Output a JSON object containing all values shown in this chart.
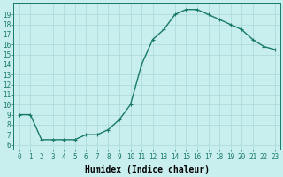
{
  "x": [
    0,
    1,
    2,
    3,
    4,
    5,
    6,
    7,
    8,
    9,
    10,
    11,
    12,
    13,
    14,
    15,
    16,
    17,
    18,
    19,
    20,
    21,
    22,
    23
  ],
  "y": [
    9,
    9,
    6.5,
    6.5,
    6.5,
    6.5,
    7,
    7,
    7.5,
    8.5,
    10,
    14,
    16.5,
    17.5,
    19,
    19.5,
    19.5,
    19,
    18.5,
    18,
    17.5,
    16.5,
    15.8,
    15.5
  ],
  "line_color": "#1a7a6a",
  "marker": "+",
  "marker_size": 3,
  "line_width": 1.0,
  "bg_color": "#c8eeee",
  "grid_color": "#aad8d8",
  "xlabel": "Humidex (Indice chaleur)",
  "xlabel_fontsize": 7,
  "ylabel_ticks": [
    6,
    7,
    8,
    9,
    10,
    11,
    12,
    13,
    14,
    15,
    16,
    17,
    18,
    19
  ],
  "xlim": [
    -0.5,
    23.5
  ],
  "ylim": [
    5.5,
    20.2
  ],
  "tick_fontsize": 5.5,
  "axis_color": "#1a7a6a",
  "marker_edge_width": 0.8
}
